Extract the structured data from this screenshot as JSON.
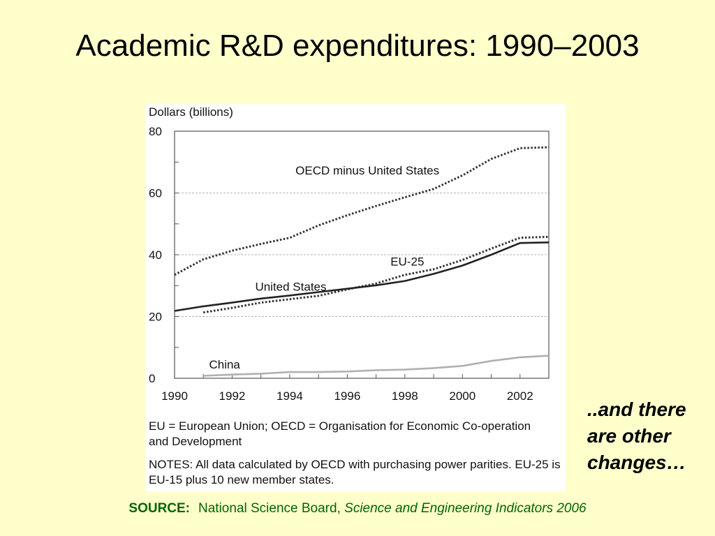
{
  "slide": {
    "title": "Academic R&D expenditures: 1990–2003",
    "side_note": "..and there are other changes…",
    "source_label": "SOURCE:",
    "source_text": "National Science Board,",
    "source_title": "Science and Engineering Indicators 2006"
  },
  "notes": {
    "abbreviations": "EU = European Union; OECD = Organisation for Economic Co-operation and Development",
    "notes": "NOTES: All data calculated by OECD with purchasing power parities. EU-25 is EU-15 plus 10 new member states."
  },
  "chart_data": {
    "type": "line",
    "title": "",
    "xlabel": "",
    "ylabel": "Dollars (billions)",
    "xlim": [
      1990,
      2003
    ],
    "ylim": [
      0,
      80
    ],
    "x_ticks": [
      1990,
      1992,
      1994,
      1996,
      1998,
      2000,
      2002
    ],
    "y_ticks": [
      0,
      20,
      40,
      60,
      80
    ],
    "grid": true,
    "series": [
      {
        "name": "OECD minus United States",
        "style": "dotted",
        "color": "#333333",
        "x": [
          1990,
          1991,
          1992,
          1993,
          1994,
          1995,
          1996,
          1997,
          1998,
          1999,
          2000,
          2001,
          2002,
          2003
        ],
        "y": [
          33.5,
          38.5,
          41.3,
          43.5,
          45.5,
          49.5,
          52.8,
          55.8,
          58.6,
          61.3,
          65.7,
          71.0,
          74.5,
          74.8
        ]
      },
      {
        "name": "EU-25",
        "style": "dotted",
        "color": "#333333",
        "x": [
          1991,
          1992,
          1993,
          1994,
          1995,
          1996,
          1997,
          1998,
          1999,
          2000,
          2001,
          2002,
          2003
        ],
        "y": [
          21.3,
          22.8,
          24.5,
          25.6,
          26.7,
          28.8,
          30.7,
          33.5,
          35.3,
          38.3,
          42.0,
          45.5,
          45.8
        ]
      },
      {
        "name": "United States",
        "style": "solid",
        "color": "#222222",
        "x": [
          1990,
          1991,
          1992,
          1993,
          1994,
          1995,
          1996,
          1997,
          1998,
          1999,
          2000,
          2001,
          2002,
          2003
        ],
        "y": [
          21.8,
          23.3,
          24.5,
          25.8,
          26.8,
          27.9,
          29.0,
          30.1,
          31.5,
          33.8,
          36.5,
          40.0,
          43.8,
          44.0
        ]
      },
      {
        "name": "China",
        "style": "solid",
        "color": "#b0b0b0",
        "x": [
          1991,
          1992,
          1993,
          1994,
          1995,
          1996,
          1997,
          1998,
          1999,
          2000,
          2001,
          2002,
          2003
        ],
        "y": [
          0.8,
          1.2,
          1.5,
          2.0,
          2.0,
          2.2,
          2.6,
          2.8,
          3.3,
          4.0,
          5.6,
          6.8,
          7.3
        ]
      }
    ]
  }
}
